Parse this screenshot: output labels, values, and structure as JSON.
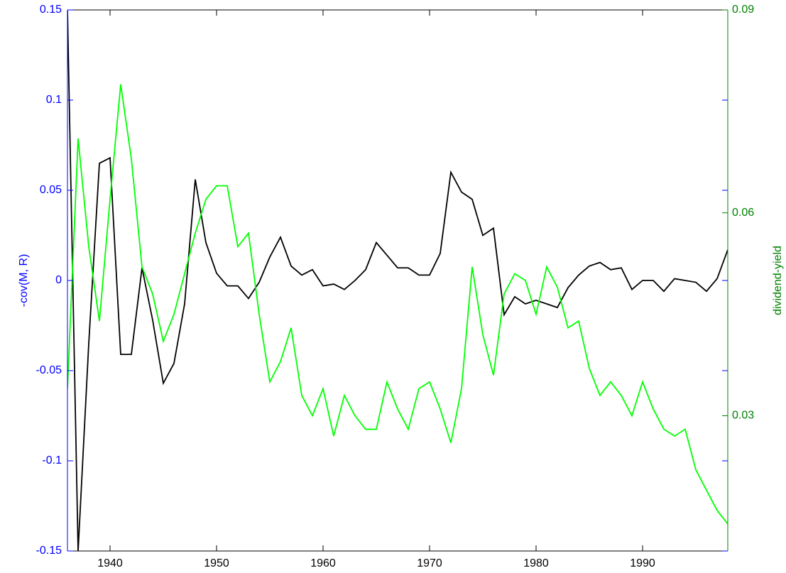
{
  "chart_data": {
    "type": "line",
    "ylabel": "-cov(M, R)",
    "y2label": "dividend-yield",
    "x": [
      1936,
      1937,
      1938,
      1939,
      1940,
      1941,
      1942,
      1943,
      1944,
      1945,
      1946,
      1947,
      1948,
      1949,
      1950,
      1951,
      1952,
      1953,
      1954,
      1955,
      1956,
      1957,
      1958,
      1959,
      1960,
      1961,
      1962,
      1963,
      1964,
      1965,
      1966,
      1967,
      1968,
      1969,
      1970,
      1971,
      1972,
      1973,
      1974,
      1975,
      1976,
      1977,
      1978,
      1979,
      1980,
      1981,
      1982,
      1983,
      1984,
      1985,
      1986,
      1987,
      1988,
      1989,
      1990,
      1991,
      1992,
      1993,
      1994,
      1995,
      1996,
      1997,
      1998
    ],
    "xlim": [
      1936,
      1998
    ],
    "xticks": [
      1940,
      1950,
      1960,
      1970,
      1980,
      1990
    ],
    "ylim": [
      -0.15,
      0.15
    ],
    "yticks": [
      -0.15,
      -0.1,
      -0.05,
      0,
      0.05,
      0.1,
      0.15
    ],
    "y2lim": [
      0.01,
      0.09
    ],
    "y2ticks": [
      0.03,
      0.06,
      0.09
    ],
    "ycolor": "#0000ff",
    "y2color": "#008000",
    "series": [
      {
        "color": "#000000",
        "axis": "y",
        "values": [
          0.15,
          -0.15,
          -0.035,
          0.065,
          0.068,
          -0.041,
          -0.041,
          0.007,
          -0.022,
          -0.057,
          -0.046,
          -0.013,
          0.056,
          0.021,
          0.004,
          -0.003,
          -0.003,
          -0.01,
          -0.001,
          0.013,
          0.024,
          0.008,
          0.003,
          0.006,
          -0.003,
          -0.002,
          -0.005,
          0.0,
          0.006,
          0.021,
          0.014,
          0.007,
          0.007,
          0.003,
          0.003,
          0.015,
          0.06,
          0.049,
          0.045,
          0.025,
          0.029,
          -0.019,
          -0.009,
          -0.013,
          -0.011,
          -0.013,
          -0.015,
          -0.004,
          0.003,
          0.008,
          0.01,
          0.006,
          0.007,
          -0.005,
          0.0,
          0.0,
          -0.006,
          0.001,
          0.0,
          -0.001,
          -0.006,
          0.001,
          0.017
        ]
      },
      {
        "color": "#00ff00",
        "axis": "y2",
        "values": [
          0.034,
          0.071,
          0.055,
          0.044,
          0.062,
          0.079,
          0.068,
          0.052,
          0.048,
          0.041,
          0.045,
          0.051,
          0.057,
          0.062,
          0.064,
          0.064,
          0.055,
          0.057,
          0.045,
          0.035,
          0.038,
          0.043,
          0.033,
          0.03,
          0.034,
          0.027,
          0.033,
          0.03,
          0.028,
          0.028,
          0.035,
          0.031,
          0.028,
          0.034,
          0.035,
          0.031,
          0.026,
          0.034,
          0.052,
          0.042,
          0.036,
          0.048,
          0.051,
          0.05,
          0.045,
          0.052,
          0.049,
          0.043,
          0.044,
          0.037,
          0.033,
          0.035,
          0.033,
          0.03,
          0.035,
          0.031,
          0.028,
          0.027,
          0.028,
          0.022,
          0.019,
          0.016,
          0.014
        ]
      }
    ]
  }
}
